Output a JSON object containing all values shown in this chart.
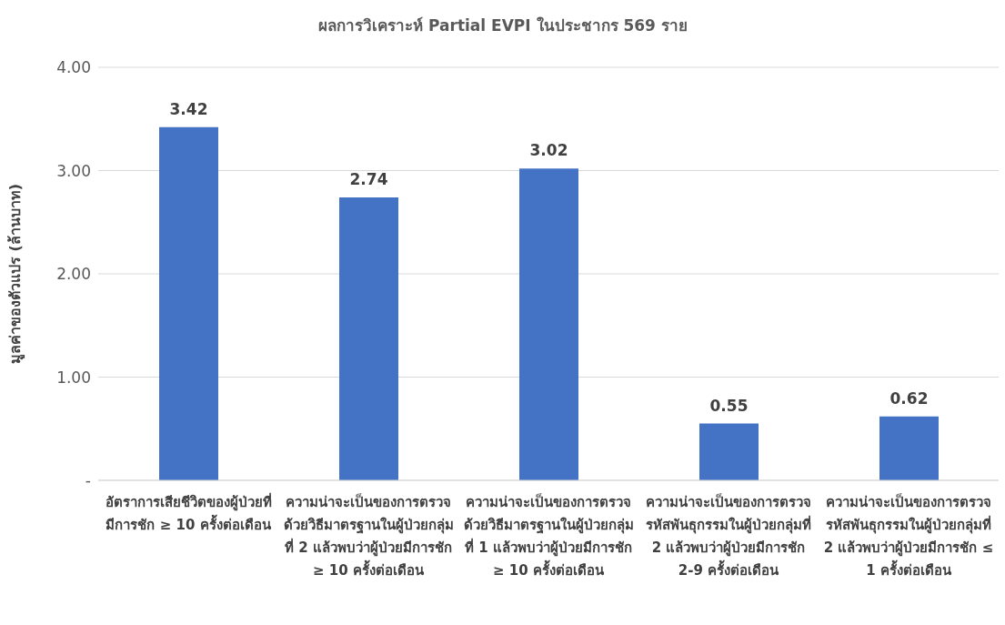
{
  "chart_data": {
    "type": "bar",
    "title": "ผลการวิเคราะห์ Partial EVPI ในประชากร 569 ราย",
    "ylabel": "มูลค่าของตัวแปร (ล้านบาท)",
    "categories": [
      "อัตราการเสียชีวิตของผู้ป่วยที่มีการชัก ≥ 10 ครั้งต่อเดือน",
      "ความน่าจะเป็นของการตรวจด้วยวิธีมาตรฐานในผู้ป่วยกลุ่มที่ 2 แล้วพบว่าผู้ป่วยมีการชัก ≥ 10 ครั้งต่อเดือน",
      "ความน่าจะเป็นของการตรวจด้วยวิธีมาตรฐานในผู้ป่วยกลุ่มที่ 1 แล้วพบว่าผู้ป่วยมีการชัก ≥ 10 ครั้งต่อเดือน",
      "ความน่าจะเป็นของการตรวจรหัสพันธุกรรมในผู้ป่วยกลุ่มที่ 2 แล้วพบว่าผู้ป่วยมีการชัก 2-9 ครั้งต่อเดือน",
      "ความน่าจะเป็นของการตรวจรหัสพันธุกรรมในผู้ป่วยกลุ่มที่ 2 แล้วพบว่าผู้ป่วยมีการชัก ≤ 1 ครั้งต่อเดือน"
    ],
    "values": [
      3.42,
      2.74,
      3.02,
      0.55,
      0.62
    ],
    "color": "#4472c4",
    "ylim": [
      0,
      4
    ],
    "yticks": [
      {
        "value": 0,
        "label": "-"
      },
      {
        "value": 1,
        "label": "1.00"
      },
      {
        "value": 2,
        "label": "2.00"
      },
      {
        "value": 3,
        "label": "3.00"
      },
      {
        "value": 4,
        "label": "4.00"
      }
    ],
    "grid": "y",
    "data_labels": true
  }
}
